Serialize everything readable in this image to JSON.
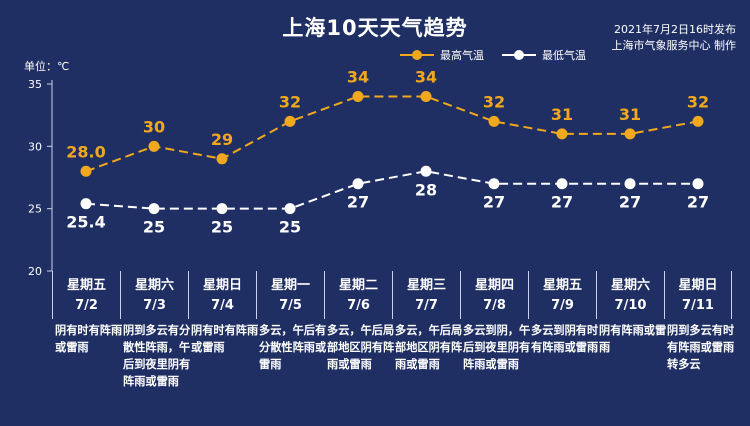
{
  "header": {
    "title": "上海10天天气趋势",
    "publish_time": "2021年7月2日16时发布",
    "publisher": "上海市气象服务中心 制作"
  },
  "colors": {
    "background": "#1f2f63",
    "high": "#f2a81d",
    "low": "#ffffff"
  },
  "chart_data": {
    "type": "line",
    "unit_label": "单位：℃",
    "yticks": [
      20,
      25,
      30,
      35
    ],
    "ylim": [
      20,
      35
    ],
    "legend_placement": "top-right",
    "categories": [
      "7/2",
      "7/3",
      "7/4",
      "7/5",
      "7/6",
      "7/7",
      "7/8",
      "7/9",
      "7/10",
      "7/11"
    ],
    "series": [
      {
        "name": "最高气温",
        "values": [
          28.0,
          30,
          29,
          32,
          34,
          34,
          32,
          31,
          31,
          32
        ],
        "labels": [
          "28.0",
          "30",
          "29",
          "32",
          "34",
          "34",
          "32",
          "31",
          "31",
          "32"
        ]
      },
      {
        "name": "最低气温",
        "values": [
          25.4,
          25,
          25,
          25,
          27,
          28,
          27,
          27,
          27,
          27
        ],
        "labels": [
          "25.4",
          "25",
          "25",
          "25",
          "27",
          "28",
          "27",
          "27",
          "27",
          "27"
        ]
      }
    ]
  },
  "days": [
    {
      "weekday": "星期五",
      "date": "7/2",
      "weather": "阴有时有阵雨或雷雨"
    },
    {
      "weekday": "星期六",
      "date": "7/3",
      "weather": "阴到多云有分散性阵雨，午后到夜里阴有阵雨或雷雨"
    },
    {
      "weekday": "星期日",
      "date": "7/4",
      "weather": "阴有时有阵雨或雷雨"
    },
    {
      "weekday": "星期一",
      "date": "7/5",
      "weather": "多云，午后有分散性阵雨或雷雨"
    },
    {
      "weekday": "星期二",
      "date": "7/6",
      "weather": "多云，午后局部地区阴有阵雨或雷雨"
    },
    {
      "weekday": "星期三",
      "date": "7/7",
      "weather": "多云，午后局部地区阴有阵雨或雷雨"
    },
    {
      "weekday": "星期四",
      "date": "7/8",
      "weather": "多云到阴，午后到夜里阴有阵雨或雷雨"
    },
    {
      "weekday": "星期五",
      "date": "7/9",
      "weather": "多云到阴有时有阵雨或雷雨"
    },
    {
      "weekday": "星期六",
      "date": "7/10",
      "weather": "阴有阵雨或雷雨"
    },
    {
      "weekday": "星期日",
      "date": "7/11",
      "weather": "阴到多云有时有阵雨或雷雨转多云"
    }
  ]
}
